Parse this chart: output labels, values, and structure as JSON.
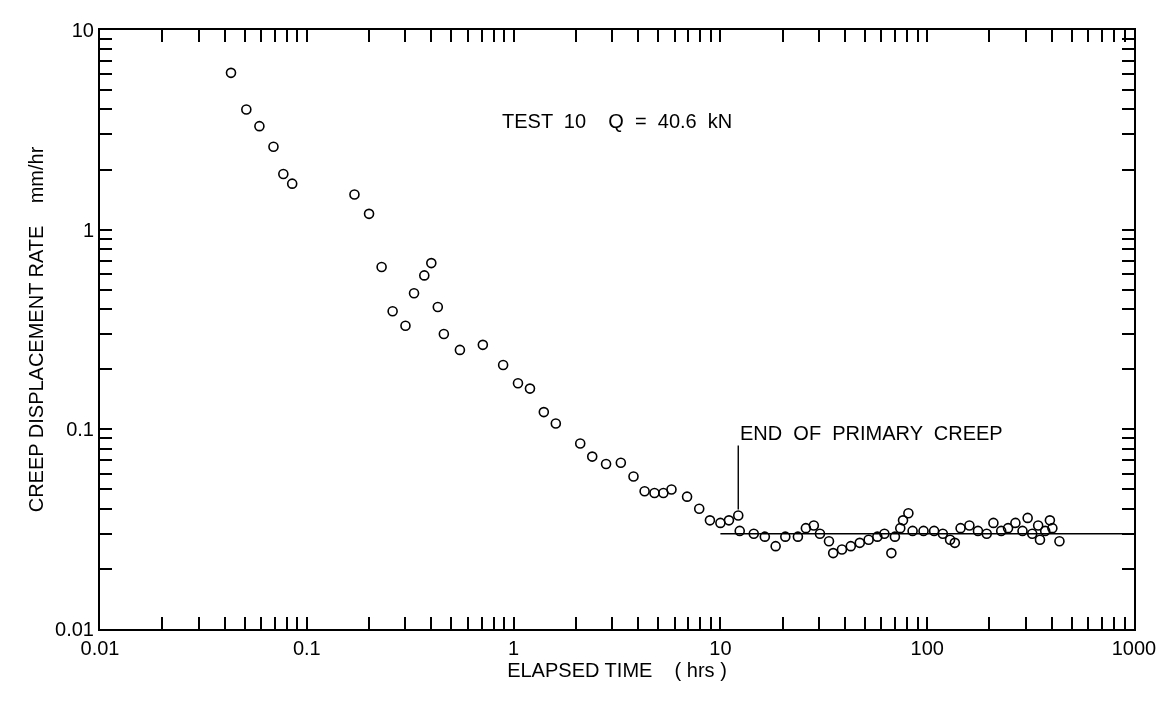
{
  "chart_data": {
    "type": "scatter",
    "xlabel": "ELAPSED TIME    ( hrs )",
    "ylabel": "CREEP DISPLACEMENT RATE    mm/hr",
    "log": "xy",
    "marker": "circle",
    "xlim": [
      0.01,
      1000
    ],
    "ylim": [
      0.01,
      10
    ],
    "xticks": [
      {
        "value": 0.01,
        "label": "0.01"
      },
      {
        "value": 0.02,
        "label": null
      },
      {
        "value": 0.03,
        "label": null
      },
      {
        "value": 0.04,
        "label": null
      },
      {
        "value": 0.05,
        "label": null
      },
      {
        "value": 0.06,
        "label": null
      },
      {
        "value": 0.07,
        "label": null
      },
      {
        "value": 0.08,
        "label": null
      },
      {
        "value": 0.09,
        "label": null
      },
      {
        "value": 0.1,
        "label": "0.1"
      },
      {
        "value": 0.2,
        "label": null
      },
      {
        "value": 0.3,
        "label": null
      },
      {
        "value": 0.4,
        "label": null
      },
      {
        "value": 0.5,
        "label": null
      },
      {
        "value": 0.6,
        "label": null
      },
      {
        "value": 0.7,
        "label": null
      },
      {
        "value": 0.8,
        "label": null
      },
      {
        "value": 0.9,
        "label": null
      },
      1,
      {
        "value": 2,
        "label": null
      },
      {
        "value": 3,
        "label": null
      },
      {
        "value": 4,
        "label": null
      },
      {
        "value": 5,
        "label": null
      },
      {
        "value": 6,
        "label": null
      },
      {
        "value": 7,
        "label": null
      },
      {
        "value": 8,
        "label": null
      },
      {
        "value": 9,
        "label": null
      },
      10,
      {
        "value": 20,
        "label": null
      },
      {
        "value": 30,
        "label": null
      },
      {
        "value": 40,
        "label": null
      },
      {
        "value": 50,
        "label": null
      },
      {
        "value": 60,
        "label": null
      },
      {
        "value": 70,
        "label": null
      },
      {
        "value": 80,
        "label": null
      },
      {
        "value": 90,
        "label": null
      },
      100,
      {
        "value": 200,
        "label": null
      },
      {
        "value": 300,
        "label": null
      },
      {
        "value": 400,
        "label": null
      },
      {
        "value": 500,
        "label": null
      },
      {
        "value": 600,
        "label": null
      },
      {
        "value": 700,
        "label": null
      },
      {
        "value": 800,
        "label": null
      },
      {
        "value": 900,
        "label": null
      },
      1000
    ],
    "yticks": [
      {
        "value": 0.01,
        "label": "0.01"
      },
      {
        "value": 0.02,
        "label": null
      },
      {
        "value": 0.03,
        "label": null
      },
      {
        "value": 0.04,
        "label": null
      },
      {
        "value": 0.05,
        "label": null
      },
      {
        "value": 0.06,
        "label": null
      },
      {
        "value": 0.07,
        "label": null
      },
      {
        "value": 0.08,
        "label": null
      },
      {
        "value": 0.09,
        "label": null
      },
      {
        "value": 0.1,
        "label": "0.1"
      },
      {
        "value": 0.2,
        "label": null
      },
      {
        "value": 0.3,
        "label": null
      },
      {
        "value": 0.4,
        "label": null
      },
      {
        "value": 0.5,
        "label": null
      },
      {
        "value": 0.6,
        "label": null
      },
      {
        "value": 0.7,
        "label": null
      },
      {
        "value": 0.8,
        "label": null
      },
      {
        "value": 0.9,
        "label": null
      },
      1,
      {
        "value": 2,
        "label": null
      },
      {
        "value": 3,
        "label": null
      },
      {
        "value": 4,
        "label": null
      },
      {
        "value": 5,
        "label": null
      },
      {
        "value": 6,
        "label": null
      },
      {
        "value": 7,
        "label": null
      },
      {
        "value": 8,
        "label": null
      },
      {
        "value": 9,
        "label": null
      },
      10
    ],
    "series": [
      {
        "color": "#000000",
        "x": [
          0.043,
          0.051,
          0.059,
          0.069,
          0.077,
          0.085,
          0.17,
          0.2,
          0.23,
          0.4,
          0.37,
          0.33,
          0.26,
          0.3,
          0.43,
          0.46,
          0.55,
          0.71,
          0.89,
          1.05,
          1.2,
          1.4,
          1.6,
          2.1,
          2.4,
          2.8,
          3.3,
          3.8,
          4.3,
          4.8,
          5.3,
          5.8,
          6.9,
          7.9,
          8.9,
          10,
          11,
          12.2,
          12.4,
          14.5,
          16.4,
          18.5,
          20.6,
          23.7,
          25.9,
          28.3,
          30.3,
          33.5,
          35.1,
          38.7,
          42.7,
          47.2,
          52.1,
          57.4,
          62.1,
          67.1,
          69.8,
          74.1,
          76.4,
          81.1,
          85,
          96,
          108,
          119,
          129,
          136,
          145,
          160,
          176,
          194,
          209,
          228,
          246,
          267,
          289,
          306,
          322,
          344,
          351,
          372,
          392,
          403,
          436
        ],
        "values": [
          6.1,
          4.0,
          3.3,
          2.6,
          1.9,
          1.7,
          1.5,
          1.2,
          0.65,
          0.68,
          0.59,
          0.48,
          0.39,
          0.33,
          0.41,
          0.3,
          0.25,
          0.265,
          0.21,
          0.17,
          0.16,
          0.122,
          0.107,
          0.085,
          0.073,
          0.067,
          0.068,
          0.058,
          0.049,
          0.048,
          0.048,
          0.05,
          0.046,
          0.04,
          0.035,
          0.034,
          0.035,
          0.037,
          0.031,
          0.03,
          0.029,
          0.026,
          0.029,
          0.029,
          0.032,
          0.033,
          0.03,
          0.0275,
          0.024,
          0.025,
          0.026,
          0.027,
          0.028,
          0.029,
          0.03,
          0.024,
          0.029,
          0.032,
          0.035,
          0.038,
          0.031,
          0.031,
          0.031,
          0.03,
          0.028,
          0.027,
          0.032,
          0.033,
          0.031,
          0.03,
          0.034,
          0.031,
          0.032,
          0.034,
          0.031,
          0.036,
          0.03,
          0.033,
          0.028,
          0.031,
          0.035,
          0.032,
          0.0275
        ]
      },
      {
        "type": "line",
        "color": "#000000",
        "marker": "none",
        "x": [
          10,
          1000
        ],
        "values": [
          0.03,
          0.03
        ]
      }
    ],
    "annotations": [
      "TEST  10    Q  =  40.6  kN",
      {
        "text": "END  OF  PRIMARY  CREEP",
        "x": 12.2,
        "y": 0.037
      }
    ]
  }
}
